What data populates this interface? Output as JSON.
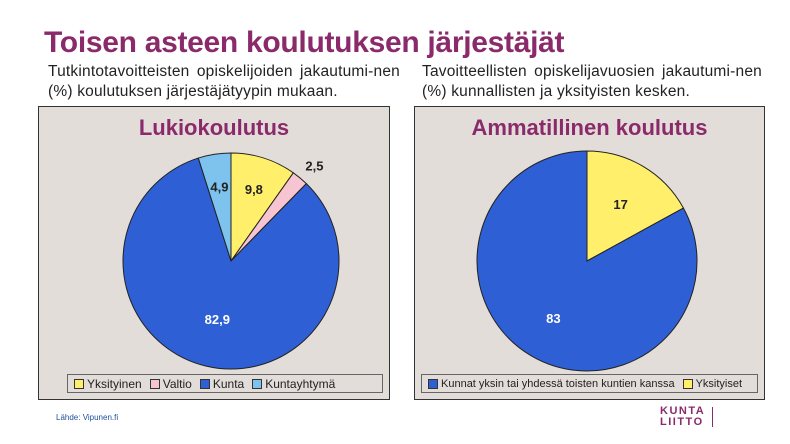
{
  "title": "Toisen asteen koulutuksen järjestäjät",
  "subtitle_left": "Tutkintotavoitteisten opiskelijoiden jakautumi-nen (%) koulutuksen järjestäjätyypin mukaan.",
  "subtitle_right": "Tavoitteellisten opiskelijavuosien jakautumi-nen (%) kunnallisten ja yksityisten kesken.",
  "source": "Lähde: Vipunen.fi",
  "logo": {
    "top": "KUNTA",
    "bottom": "LIITTO",
    "sub": "Kuntien- liitto.svg"
  },
  "chart_data": [
    {
      "type": "pie",
      "title": "Lukiokoulutus",
      "categories": [
        "Yksityinen",
        "Valtio",
        "Kunta",
        "Kuntayhtymä"
      ],
      "values": [
        9.8,
        2.5,
        82.9,
        4.9
      ],
      "labels": [
        "9,8",
        "2,5",
        "82,9",
        "4,9"
      ],
      "colors": [
        "#ffef6b",
        "#f7c4d2",
        "#2f5fd4",
        "#7ec3ee"
      ],
      "legend": "bottom"
    },
    {
      "type": "pie",
      "title": "Ammatillinen koulutus",
      "categories": [
        "Yksityiset",
        "Kunnat yksin tai yhdessä toisten kuntien kanssa"
      ],
      "values": [
        17,
        83
      ],
      "labels": [
        "17",
        "83"
      ],
      "colors": [
        "#ffef6b",
        "#2f5fd4"
      ],
      "legend_order": [
        1,
        0
      ],
      "legend": "bottom"
    }
  ]
}
